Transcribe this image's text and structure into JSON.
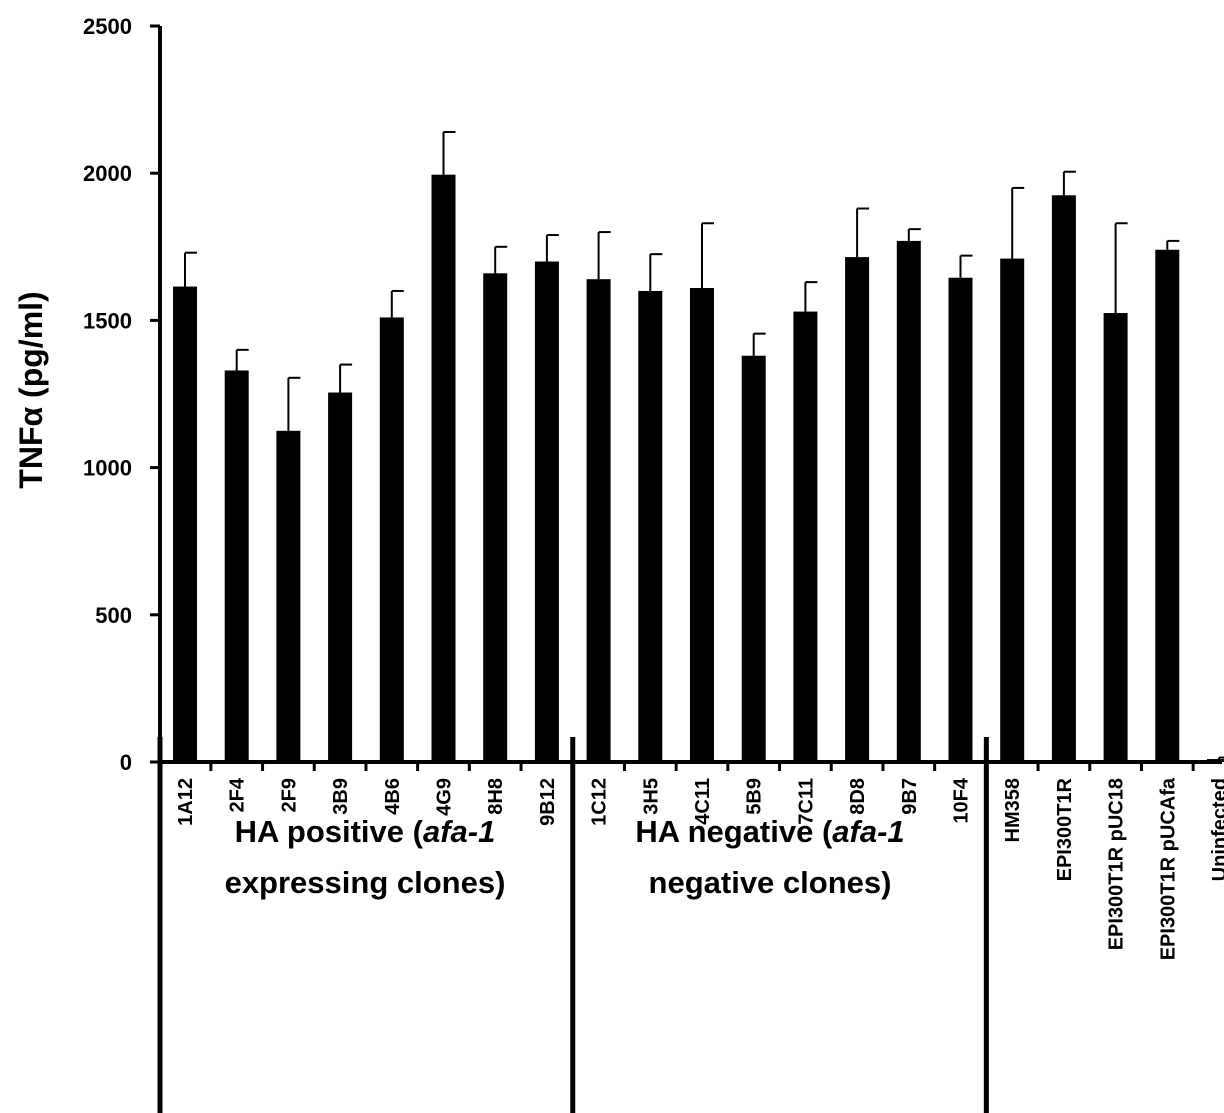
{
  "chart_data": {
    "type": "bar",
    "ylabel": "TNFα (pg/ml)",
    "ylim": [
      0,
      2500
    ],
    "yticks": [
      0,
      500,
      1000,
      1500,
      2000,
      2500
    ],
    "grid": false,
    "bar_color": "#000000",
    "categories": [
      "1A12",
      "2F4",
      "2F9",
      "3B9",
      "4B6",
      "4G9",
      "8H8",
      "9B12",
      "1C12",
      "3H5",
      "4C11",
      "5B9",
      "7C11",
      "8D8",
      "9B7",
      "10F4",
      "HM358",
      "EPI300T1R",
      "EPI300T1R pUC18",
      "EPI300T1R pUCAfa",
      "Uninfected"
    ],
    "values": [
      1615,
      1330,
      1125,
      1255,
      1510,
      1995,
      1660,
      1700,
      1640,
      1600,
      1610,
      1380,
      1530,
      1715,
      1770,
      1645,
      1710,
      1925,
      1525,
      1740,
      10
    ],
    "errors": [
      115,
      70,
      180,
      95,
      90,
      145,
      90,
      90,
      160,
      125,
      220,
      75,
      100,
      165,
      40,
      75,
      240,
      80,
      305,
      30,
      5
    ],
    "groups": [
      {
        "lines": [
          "HA positive (",
          "afa-1",
          "",
          "expressing clones)"
        ],
        "start": 0,
        "end": 7
      },
      {
        "lines": [
          "HA negative (",
          "afa-1",
          "",
          "negative clones)"
        ],
        "start": 8,
        "end": 15
      }
    ]
  }
}
